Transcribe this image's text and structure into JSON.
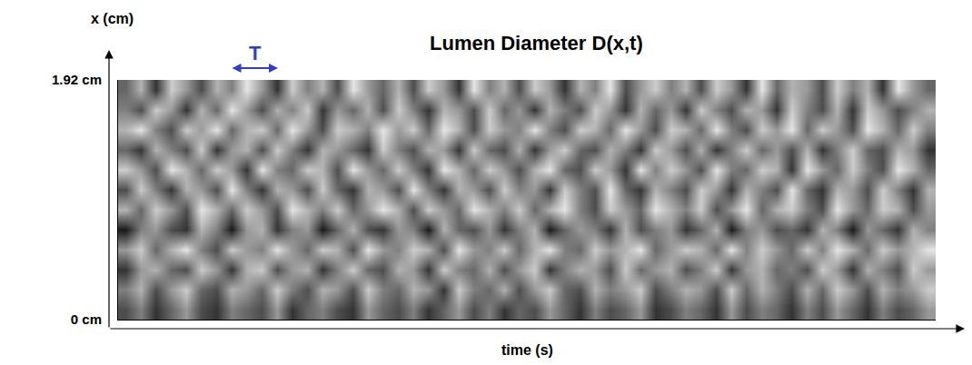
{
  "chart_data": {
    "type": "heatmap",
    "title": "Lumen Diameter D(x,t)",
    "x_label": "time (s)",
    "y_label": "x (cm)",
    "annotations": [
      "T"
    ],
    "ylim": [
      0,
      1.92
    ],
    "yticks": [
      {
        "value": 0,
        "label": "0 cm"
      },
      {
        "value": 1.92,
        "label": "1.92 cm"
      }
    ],
    "tick_labels": "y",
    "zlim": [
      0,
      1
    ],
    "cells": [
      [
        0.3,
        0.5,
        0.2,
        0.4,
        0.6,
        0.3,
        0.2,
        0.5,
        0.4,
        0.3,
        0.6,
        0.2,
        0.4,
        0.5,
        0.3,
        0.2,
        0.6,
        0.4,
        0.3,
        0.5,
        0.2,
        0.4,
        0.6,
        0.3,
        0.5,
        0.2,
        0.4,
        0.3,
        0.6,
        0.4,
        0.2,
        0.5,
        0.3,
        0.4,
        0.6,
        0.2,
        0.3,
        0.5,
        0.4,
        0.2,
        0.6,
        0.3,
        0.5,
        0.4,
        0.2,
        0.5,
        0.3,
        0.6,
        0.4,
        0.2,
        0.5,
        0.3,
        0.4,
        0.6
      ],
      [
        0.5,
        0.7,
        0.3,
        0.6,
        0.8,
        0.4,
        0.3,
        0.7,
        0.6,
        0.4,
        0.8,
        0.5,
        0.3,
        0.7,
        0.6,
        0.3,
        0.8,
        0.5,
        0.4,
        0.7,
        0.6,
        0.2,
        0.8,
        0.5,
        0.4,
        0.7,
        0.3,
        0.6,
        0.8,
        0.4,
        0.3,
        0.7,
        0.5,
        0.6,
        0.8,
        0.3,
        0.5,
        0.7,
        0.6,
        0.3,
        0.8,
        0.4,
        0.7,
        0.5,
        0.3,
        0.7,
        0.4,
        0.8,
        0.6,
        0.3,
        0.7,
        0.5,
        0.6,
        0.8
      ],
      [
        0.2,
        0.6,
        0.7,
        0.4,
        0.3,
        0.8,
        0.6,
        0.2,
        0.7,
        0.8,
        0.3,
        0.6,
        0.7,
        0.2,
        0.5,
        0.8,
        0.4,
        0.3,
        0.7,
        0.6,
        0.2,
        0.8,
        0.5,
        0.4,
        0.7,
        0.3,
        0.6,
        0.8,
        0.2,
        0.5,
        0.7,
        0.6,
        0.3,
        0.8,
        0.4,
        0.6,
        0.7,
        0.3,
        0.5,
        0.8,
        0.2,
        0.6,
        0.7,
        0.4,
        0.5,
        0.3,
        0.8,
        0.6,
        0.2,
        0.7,
        0.5,
        0.3,
        0.8,
        0.6
      ],
      [
        0.6,
        0.8,
        0.4,
        0.7,
        0.9,
        0.5,
        0.3,
        0.8,
        0.6,
        0.5,
        0.9,
        0.6,
        0.4,
        0.8,
        0.7,
        0.3,
        0.9,
        0.6,
        0.5,
        0.8,
        0.7,
        0.3,
        0.9,
        0.6,
        0.5,
        0.8,
        0.4,
        0.7,
        0.9,
        0.5,
        0.4,
        0.8,
        0.6,
        0.7,
        0.9,
        0.4,
        0.6,
        0.8,
        0.7,
        0.4,
        0.9,
        0.5,
        0.8,
        0.6,
        0.4,
        0.8,
        0.5,
        0.9,
        0.7,
        0.4,
        0.8,
        0.6,
        0.7,
        0.9
      ],
      [
        0.1,
        0.5,
        0.6,
        0.3,
        0.2,
        0.7,
        0.5,
        0.1,
        0.6,
        0.7,
        0.2,
        0.5,
        0.6,
        0.1,
        0.4,
        0.7,
        0.3,
        0.2,
        0.6,
        0.5,
        0.1,
        0.7,
        0.4,
        0.3,
        0.6,
        0.2,
        0.5,
        0.7,
        0.1,
        0.4,
        0.6,
        0.5,
        0.2,
        0.7,
        0.3,
        0.5,
        0.6,
        0.2,
        0.4,
        0.7,
        0.1,
        0.5,
        0.6,
        0.3,
        0.4,
        0.2,
        0.7,
        0.5,
        0.1,
        0.6,
        0.4,
        0.2,
        0.7,
        0.5
      ],
      [
        0.7,
        0.4,
        0.8,
        0.6,
        0.3,
        0.9,
        0.7,
        0.4,
        0.8,
        0.6,
        0.3,
        0.9,
        0.7,
        0.5,
        0.8,
        0.4,
        0.6,
        0.9,
        0.7,
        0.3,
        0.8,
        0.6,
        0.4,
        0.9,
        0.7,
        0.5,
        0.8,
        0.4,
        0.7,
        0.9,
        0.5,
        0.3,
        0.8,
        0.6,
        0.4,
        0.9,
        0.7,
        0.5,
        0.8,
        0.3,
        0.6,
        0.9,
        0.4,
        0.7,
        0.8,
        0.5,
        0.3,
        0.9,
        0.6,
        0.4,
        0.8,
        0.7,
        0.3,
        0.6
      ],
      [
        0.3,
        0.8,
        0.5,
        0.2,
        0.7,
        0.6,
        0.3,
        0.9,
        0.5,
        0.2,
        0.7,
        0.6,
        0.3,
        0.8,
        0.4,
        0.2,
        0.7,
        0.6,
        0.3,
        0.9,
        0.5,
        0.2,
        0.7,
        0.6,
        0.3,
        0.8,
        0.5,
        0.6,
        0.2,
        0.8,
        0.5,
        0.3,
        0.9,
        0.4,
        0.2,
        0.7,
        0.5,
        0.3,
        0.8,
        0.6,
        0.2,
        0.7,
        0.5,
        0.3,
        0.9,
        0.4,
        0.2,
        0.7,
        0.6,
        0.3,
        0.8,
        0.5,
        0.2,
        0.7
      ],
      [
        0.8,
        0.6,
        0.3,
        0.9,
        0.7,
        0.4,
        0.8,
        0.6,
        0.2,
        0.9,
        0.5,
        0.4,
        0.8,
        0.7,
        0.3,
        0.9,
        0.6,
        0.4,
        0.8,
        0.5,
        0.2,
        0.9,
        0.7,
        0.4,
        0.8,
        0.6,
        0.3,
        0.7,
        0.9,
        0.4,
        0.3,
        0.8,
        0.6,
        0.2,
        0.9,
        0.5,
        0.8,
        0.6,
        0.3,
        0.9,
        0.5,
        0.4,
        0.8,
        0.7,
        0.2,
        0.9,
        0.6,
        0.4,
        0.8,
        0.5,
        0.3,
        0.9,
        0.7,
        0.4
      ],
      [
        0.4,
        0.2,
        0.7,
        0.5,
        0.3,
        0.8,
        0.2,
        0.6,
        0.7,
        0.3,
        0.8,
        0.5,
        0.2,
        0.7,
        0.6,
        0.4,
        0.2,
        0.8,
        0.5,
        0.3,
        0.7,
        0.6,
        0.2,
        0.8,
        0.4,
        0.3,
        0.7,
        0.2,
        0.6,
        0.8,
        0.4,
        0.3,
        0.7,
        0.5,
        0.2,
        0.8,
        0.6,
        0.3,
        0.7,
        0.2,
        0.5,
        0.8,
        0.4,
        0.6,
        0.3,
        0.7,
        0.2,
        0.5,
        0.8,
        0.4,
        0.3,
        0.7,
        0.6,
        0.2
      ],
      [
        0.7,
        0.9,
        0.5,
        0.3,
        0.8,
        0.6,
        0.9,
        0.4,
        0.7,
        0.8,
        0.4,
        0.9,
        0.6,
        0.3,
        0.8,
        0.7,
        0.5,
        0.9,
        0.6,
        0.8,
        0.4,
        0.9,
        0.7,
        0.3,
        0.8,
        0.6,
        0.5,
        0.9,
        0.5,
        0.3,
        0.8,
        0.7,
        0.4,
        0.9,
        0.6,
        0.3,
        0.8,
        0.7,
        0.4,
        0.9,
        0.5,
        0.3,
        0.8,
        0.6,
        0.9,
        0.4,
        0.8,
        0.6,
        0.3,
        0.9,
        0.7,
        0.4,
        0.8,
        0.5
      ],
      [
        0.5,
        0.3,
        0.8,
        0.6,
        0.2,
        0.7,
        0.4,
        0.9,
        0.6,
        0.3,
        0.7,
        0.5,
        0.8,
        0.2,
        0.6,
        0.4,
        0.7,
        0.3,
        0.8,
        0.5,
        0.2,
        0.7,
        0.6,
        0.3,
        0.8,
        0.4,
        0.6,
        0.2,
        0.7,
        0.5,
        0.3,
        0.8,
        0.6,
        0.2,
        0.7,
        0.4,
        0.6,
        0.2,
        0.8,
        0.5,
        0.3,
        0.7,
        0.6,
        0.2,
        0.8,
        0.5,
        0.3,
        0.7,
        0.2,
        0.8,
        0.6,
        0.3,
        0.5,
        0.7
      ],
      [
        0.4,
        0.7,
        0.2,
        0.8,
        0.6,
        0.3,
        0.7,
        0.5,
        0.9,
        0.6,
        0.2,
        0.8,
        0.5,
        0.7,
        0.3,
        0.9,
        0.6,
        0.4,
        0.7,
        0.3,
        0.8,
        0.6,
        0.2,
        0.9,
        0.5,
        0.7,
        0.3,
        0.8,
        0.6,
        0.2,
        0.7,
        0.5,
        0.9,
        0.3,
        0.6,
        0.8,
        0.5,
        0.7,
        0.3,
        0.8,
        0.6,
        0.2,
        0.9,
        0.4,
        0.7,
        0.6,
        0.3,
        0.8,
        0.5,
        0.7,
        0.2,
        0.9,
        0.6,
        0.4
      ]
    ]
  }
}
